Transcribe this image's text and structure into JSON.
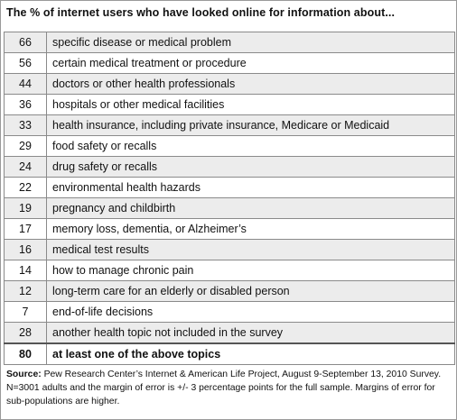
{
  "chart_data": {
    "type": "table",
    "title": "The % of internet users who have looked online for information about...",
    "rows": [
      {
        "value": 66,
        "topic": "specific disease or medical problem"
      },
      {
        "value": 56,
        "topic": "certain medical treatment or procedure"
      },
      {
        "value": 44,
        "topic": "doctors or other health professionals"
      },
      {
        "value": 36,
        "topic": "hospitals or other medical facilities"
      },
      {
        "value": 33,
        "topic": "health insurance, including private insurance, Medicare or Medicaid"
      },
      {
        "value": 29,
        "topic": "food safety or recalls"
      },
      {
        "value": 24,
        "topic": "drug safety or recalls"
      },
      {
        "value": 22,
        "topic": "environmental health hazards"
      },
      {
        "value": 19,
        "topic": "pregnancy and childbirth"
      },
      {
        "value": 17,
        "topic": "memory loss, dementia, or Alzheimer’s"
      },
      {
        "value": 16,
        "topic": "medical test results"
      },
      {
        "value": 14,
        "topic": "how to manage chronic pain"
      },
      {
        "value": 12,
        "topic": "long-term care for an elderly or disabled person"
      },
      {
        "value": 7,
        "topic": "end-of-life decisions"
      },
      {
        "value": 28,
        "topic": "another health topic not included in the survey"
      }
    ],
    "total": {
      "value": 80,
      "topic": "at least one of the above topics"
    },
    "source_label": "Source:",
    "source_text": " Pew Research Center’s Internet & American Life Project, August 9-September 13, 2010 Survey. N=3001 adults and the margin of error is +/- 3 percentage points for the full sample. Margins of error for sub-populations are higher.",
    "colors": {
      "row_shaded": "#ececec",
      "row_plain": "#ffffff",
      "border": "#8a8a8a"
    }
  }
}
